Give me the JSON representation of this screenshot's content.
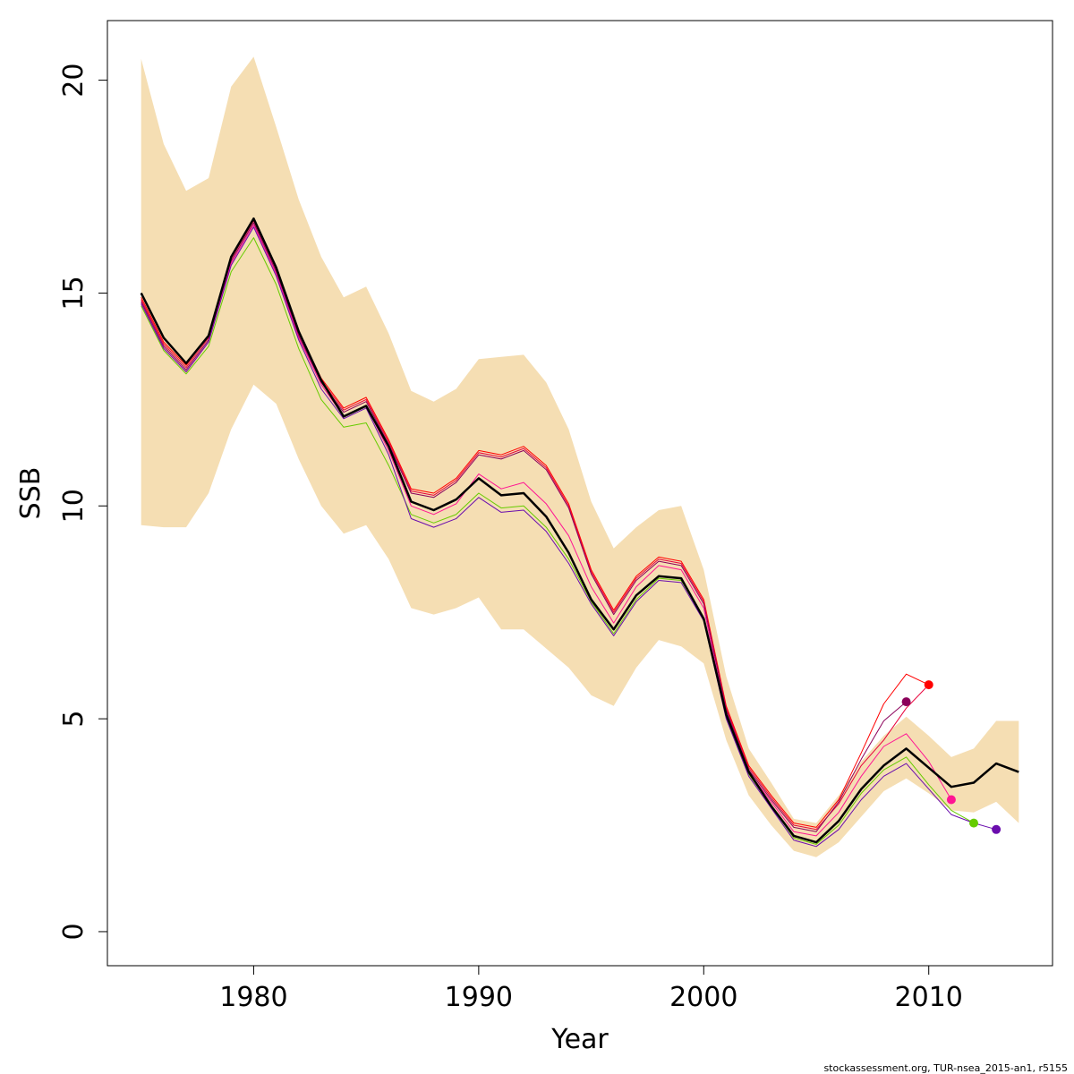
{
  "chart_data": {
    "type": "line",
    "xlabel": "Year",
    "ylabel": "SSB",
    "xlim": [
      1973.5,
      2015.5
    ],
    "ylim": [
      -0.8,
      21.4
    ],
    "x_ticks": [
      1980,
      1990,
      2000,
      2010
    ],
    "y_ticks": [
      0,
      5,
      10,
      15,
      20
    ],
    "grid": false,
    "colors": {
      "band": "#f5deb3",
      "main": "#000000",
      "red": "#ff0000",
      "crimson": "#e8003a",
      "darkmagenta": "#8b005a",
      "magenta": "#ff1493",
      "green": "#66cc00",
      "purple": "#6a0dad"
    },
    "band": {
      "name": "confidence interval",
      "x": [
        1975,
        1976,
        1977,
        1978,
        1979,
        1980,
        1981,
        1982,
        1983,
        1984,
        1985,
        1986,
        1987,
        1988,
        1989,
        1990,
        1991,
        1992,
        1993,
        1994,
        1995,
        1996,
        1997,
        1998,
        1999,
        2000,
        2001,
        2002,
        2003,
        2004,
        2005,
        2006,
        2007,
        2008,
        2009,
        2010,
        2011,
        2012,
        2013,
        2014
      ],
      "upper": [
        20.5,
        18.5,
        17.4,
        17.7,
        19.85,
        20.55,
        18.9,
        17.2,
        15.85,
        14.9,
        15.15,
        14.05,
        12.7,
        12.45,
        12.75,
        13.45,
        13.5,
        13.55,
        12.9,
        11.8,
        10.1,
        9.0,
        9.5,
        9.9,
        10.0,
        8.5,
        6.0,
        4.3,
        3.5,
        2.65,
        2.55,
        3.2,
        4.0,
        4.6,
        5.05,
        4.6,
        4.1,
        4.3,
        4.95,
        4.95
      ],
      "lower": [
        9.55,
        9.5,
        9.5,
        10.3,
        11.8,
        12.85,
        12.4,
        11.1,
        10.0,
        9.35,
        9.55,
        8.75,
        7.6,
        7.45,
        7.6,
        7.85,
        7.1,
        7.1,
        6.65,
        6.2,
        5.55,
        5.3,
        6.2,
        6.85,
        6.7,
        6.3,
        4.5,
        3.2,
        2.5,
        1.9,
        1.75,
        2.1,
        2.7,
        3.3,
        3.6,
        3.25,
        2.85,
        2.8,
        3.05,
        2.55
      ]
    },
    "series": [
      {
        "color": "#ff0000",
        "width": 1,
        "x": [
          1975,
          1976,
          1977,
          1978,
          1979,
          1980,
          1981,
          1982,
          1983,
          1984,
          1985,
          1986,
          1987,
          1988,
          1989,
          1990,
          1991,
          1992,
          1993,
          1994,
          1995,
          1996,
          1997,
          1998,
          1999,
          2000,
          2001,
          2002,
          2003,
          2004,
          2005,
          2006,
          2007,
          2008,
          2009,
          2010
        ],
        "values": [
          14.9,
          13.85,
          13.3,
          14.0,
          15.85,
          16.75,
          15.6,
          14.1,
          13.0,
          12.3,
          12.55,
          11.55,
          10.4,
          10.3,
          10.65,
          11.3,
          11.2,
          11.4,
          10.95,
          10.05,
          8.5,
          7.55,
          8.35,
          8.8,
          8.7,
          7.8,
          5.3,
          3.9,
          3.2,
          2.55,
          2.45,
          3.1,
          4.2,
          5.35,
          6.05,
          5.8
        ],
        "end_point": true
      },
      {
        "color": "#e8003a",
        "width": 1,
        "x": [
          1975,
          1976,
          1977,
          1978,
          1979,
          1980,
          1981,
          1982,
          1983,
          1984,
          1985,
          1986,
          1987,
          1988,
          1989,
          1990,
          1991,
          1992,
          1993,
          1994,
          1995,
          1996,
          1997,
          1998,
          1999,
          2000,
          2001,
          2002,
          2003,
          2004,
          2005,
          2006,
          2007,
          2008,
          2009,
          2010
        ],
        "values": [
          14.85,
          13.8,
          13.25,
          13.95,
          15.8,
          16.7,
          15.55,
          14.05,
          12.95,
          12.25,
          12.5,
          11.5,
          10.35,
          10.25,
          10.6,
          11.25,
          11.15,
          11.35,
          10.9,
          10.0,
          8.45,
          7.5,
          8.3,
          8.75,
          8.65,
          7.75,
          5.25,
          3.85,
          3.15,
          2.5,
          2.4,
          3.0,
          3.9,
          4.5,
          5.25,
          5.8
        ],
        "end_point": false
      },
      {
        "color": "#8b005a",
        "width": 1,
        "x": [
          1975,
          1976,
          1977,
          1978,
          1979,
          1980,
          1981,
          1982,
          1983,
          1984,
          1985,
          1986,
          1987,
          1988,
          1989,
          1990,
          1991,
          1992,
          1993,
          1994,
          1995,
          1996,
          1997,
          1998,
          1999,
          2000,
          2001,
          2002,
          2003,
          2004,
          2005,
          2006,
          2007,
          2008,
          2009
        ],
        "values": [
          14.8,
          13.75,
          13.2,
          13.9,
          15.75,
          16.65,
          15.5,
          14.0,
          12.9,
          12.2,
          12.45,
          11.45,
          10.3,
          10.2,
          10.55,
          11.2,
          11.1,
          11.3,
          10.85,
          9.95,
          8.4,
          7.45,
          8.25,
          8.7,
          8.6,
          7.7,
          5.2,
          3.8,
          3.1,
          2.45,
          2.35,
          3.05,
          4.05,
          4.95,
          5.4
        ],
        "end_point": true
      },
      {
        "color": "#ff1493",
        "width": 1,
        "x": [
          1975,
          1976,
          1977,
          1978,
          1979,
          1980,
          1981,
          1982,
          1983,
          1984,
          1985,
          1986,
          1987,
          1988,
          1989,
          1990,
          1991,
          1992,
          1993,
          1994,
          1995,
          1996,
          1997,
          1998,
          1999,
          2000,
          2001,
          2002,
          2003,
          2004,
          2005,
          2006,
          2007,
          2008,
          2009,
          2010,
          2011
        ],
        "values": [
          14.75,
          13.7,
          13.15,
          13.85,
          15.7,
          16.6,
          15.45,
          13.95,
          12.85,
          12.1,
          12.35,
          11.3,
          10.0,
          9.8,
          10.05,
          10.75,
          10.4,
          10.55,
          10.05,
          9.3,
          8.1,
          7.25,
          8.1,
          8.6,
          8.5,
          7.6,
          5.1,
          3.75,
          3.05,
          2.35,
          2.25,
          2.8,
          3.65,
          4.35,
          4.65,
          4.0,
          3.1
        ],
        "end_point": true
      },
      {
        "color": "#66cc00",
        "width": 1,
        "x": [
          1975,
          1976,
          1977,
          1978,
          1979,
          1980,
          1981,
          1982,
          1983,
          1984,
          1985,
          1986,
          1987,
          1988,
          1989,
          1990,
          1991,
          1992,
          1993,
          1994,
          1995,
          1996,
          1997,
          1998,
          1999,
          2000,
          2001,
          2002,
          2003,
          2004,
          2005,
          2006,
          2007,
          2008,
          2009,
          2010,
          2011,
          2012
        ],
        "values": [
          14.7,
          13.65,
          13.1,
          13.75,
          15.5,
          16.3,
          15.2,
          13.7,
          12.5,
          11.85,
          11.95,
          10.95,
          9.8,
          9.6,
          9.8,
          10.3,
          9.95,
          10.0,
          9.5,
          8.75,
          7.75,
          7.0,
          7.8,
          8.3,
          8.25,
          7.35,
          5.05,
          3.7,
          2.95,
          2.2,
          2.05,
          2.5,
          3.25,
          3.8,
          4.1,
          3.45,
          2.85,
          2.55
        ],
        "end_point": true
      },
      {
        "color": "#6a0dad",
        "width": 1,
        "x": [
          1975,
          1976,
          1977,
          1978,
          1979,
          1980,
          1981,
          1982,
          1983,
          1984,
          1985,
          1986,
          1987,
          1988,
          1989,
          1990,
          1991,
          1992,
          1993,
          1994,
          1995,
          1996,
          1997,
          1998,
          1999,
          2000,
          2001,
          2002,
          2003,
          2004,
          2005,
          2006,
          2007,
          2008,
          2009,
          2010,
          2011,
          2012,
          2013
        ],
        "values": [
          14.75,
          13.7,
          13.15,
          13.85,
          15.65,
          16.55,
          15.4,
          13.9,
          12.75,
          12.05,
          12.3,
          11.2,
          9.7,
          9.5,
          9.7,
          10.2,
          9.85,
          9.9,
          9.4,
          8.65,
          7.7,
          6.95,
          7.75,
          8.25,
          8.2,
          7.3,
          5.0,
          3.65,
          2.9,
          2.15,
          2.0,
          2.4,
          3.1,
          3.65,
          3.95,
          3.35,
          2.75,
          2.55,
          2.4
        ],
        "end_point": true
      },
      {
        "color": "#000000",
        "width": 2.5,
        "x": [
          1975,
          1976,
          1977,
          1978,
          1979,
          1980,
          1981,
          1982,
          1983,
          1984,
          1985,
          1986,
          1987,
          1988,
          1989,
          1990,
          1991,
          1992,
          1993,
          1994,
          1995,
          1996,
          1997,
          1998,
          1999,
          2000,
          2001,
          2002,
          2003,
          2004,
          2005,
          2006,
          2007,
          2008,
          2009,
          2010,
          2011,
          2012,
          2013,
          2014
        ],
        "values": [
          15.0,
          13.95,
          13.35,
          14.0,
          15.85,
          16.75,
          15.6,
          14.1,
          12.95,
          12.1,
          12.35,
          11.4,
          10.1,
          9.9,
          10.15,
          10.65,
          10.25,
          10.3,
          9.75,
          8.9,
          7.8,
          7.1,
          7.9,
          8.35,
          8.3,
          7.35,
          5.1,
          3.75,
          2.95,
          2.25,
          2.1,
          2.6,
          3.35,
          3.9,
          4.3,
          3.85,
          3.4,
          3.5,
          3.95,
          3.75
        ],
        "end_point": false
      }
    ]
  },
  "footer": {
    "text": "stockassessment.org, TUR-nsea_2015-an1, r5155"
  }
}
